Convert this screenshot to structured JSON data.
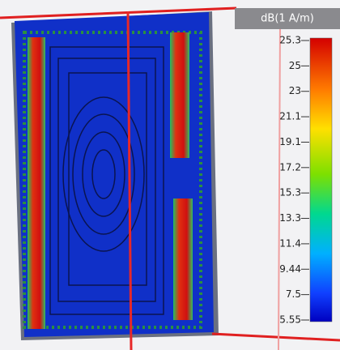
{
  "colorbar": {
    "title": "dB(1 A/m)",
    "ticks": [
      "25.3",
      "25",
      "23",
      "21.1",
      "19.1",
      "17.2",
      "15.3",
      "13.3",
      "11.4",
      "9.44",
      "7.5",
      "5.55"
    ]
  }
}
